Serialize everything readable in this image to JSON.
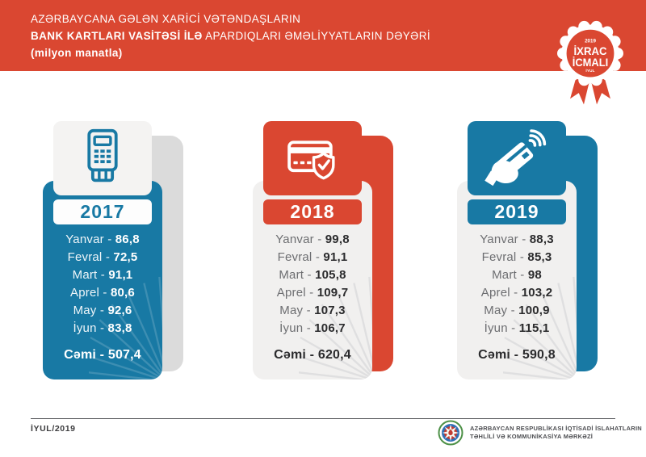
{
  "header": {
    "line1": "AZƏRBAYCANA GƏLƏN XARİCİ VƏTƏNDAŞLARIN",
    "line2_bold": "BANK KARTLARI VASİTƏSİ İLƏ",
    "line2_rest": " APARDIQLARI ƏMƏLİYYATLARIN DƏYƏRİ",
    "line3": "(milyon manatla)"
  },
  "badge": {
    "year": "2019",
    "word1": "İXRAC",
    "word2": "İCMALI",
    "month": "İYUL"
  },
  "separator": " - ",
  "cards": [
    {
      "year": "2017",
      "icon": "pos-terminal-icon",
      "months": [
        {
          "label": "Yanvar",
          "value": "86,8"
        },
        {
          "label": "Fevral",
          "value": "72,5"
        },
        {
          "label": "Mart",
          "value": "91,1"
        },
        {
          "label": "Aprel",
          "value": "80,6"
        },
        {
          "label": "May",
          "value": "92,6"
        },
        {
          "label": "İyun",
          "value": "83,8"
        }
      ],
      "total_label": "Cəmi",
      "total_value": "507,4"
    },
    {
      "year": "2018",
      "icon": "credit-card-shield-icon",
      "months": [
        {
          "label": "Yanvar",
          "value": "99,8"
        },
        {
          "label": "Fevral",
          "value": "91,1"
        },
        {
          "label": "Mart",
          "value": "105,8"
        },
        {
          "label": "Aprel",
          "value": "109,7"
        },
        {
          "label": "May",
          "value": "107,3"
        },
        {
          "label": "İyun",
          "value": "106,7"
        }
      ],
      "total_label": "Cəmi",
      "total_value": "620,4"
    },
    {
      "year": "2019",
      "icon": "contactless-payment-icon",
      "months": [
        {
          "label": "Yanvar",
          "value": "88,3"
        },
        {
          "label": "Fevral",
          "value": "85,3"
        },
        {
          "label": "Mart",
          "value": "98"
        },
        {
          "label": "Aprel",
          "value": "103,2"
        },
        {
          "label": "May",
          "value": "100,9"
        },
        {
          "label": "İyun",
          "value": "115,1"
        }
      ],
      "total_label": "Cəmi",
      "total_value": "590,8"
    }
  ],
  "footer": {
    "date": "İYUL/2019",
    "org_line1": "AZƏRBAYCAN RESPUBLİKASI İQTİSADİ İSLAHATLARIN",
    "org_line2": "TƏHLİLİ VƏ KOMMUNİKASİYA MƏRKƏZİ"
  },
  "colors": {
    "red": "#DA4731",
    "blue": "#1879A4",
    "light_card": "#F1F0EF",
    "gray_shadow": "#DBDBDB",
    "text_dark": "#2B2B2D",
    "text_gray": "#6D6E71"
  },
  "chart_data": {
    "type": "table",
    "title": "AZƏRBAYCANA GƏLƏN XARİCİ VƏTƏNDAŞLARIN BANK KARTLARI VASİTƏSİ İLƏ APARDIQLARI ƏMƏLİYYATLARIN DƏYƏRİ",
    "unit": "milyon manatla",
    "categories": [
      "Yanvar",
      "Fevral",
      "Mart",
      "Aprel",
      "May",
      "İyun"
    ],
    "series": [
      {
        "name": "2017",
        "values": [
          86.8,
          72.5,
          91.1,
          80.6,
          92.6,
          83.8
        ],
        "total": 507.4
      },
      {
        "name": "2018",
        "values": [
          99.8,
          91.1,
          105.8,
          109.7,
          107.3,
          106.7
        ],
        "total": 620.4
      },
      {
        "name": "2019",
        "values": [
          88.3,
          85.3,
          98,
          103.2,
          100.9,
          115.1
        ],
        "total": 590.8
      }
    ],
    "totals_label": "Cəmi"
  }
}
